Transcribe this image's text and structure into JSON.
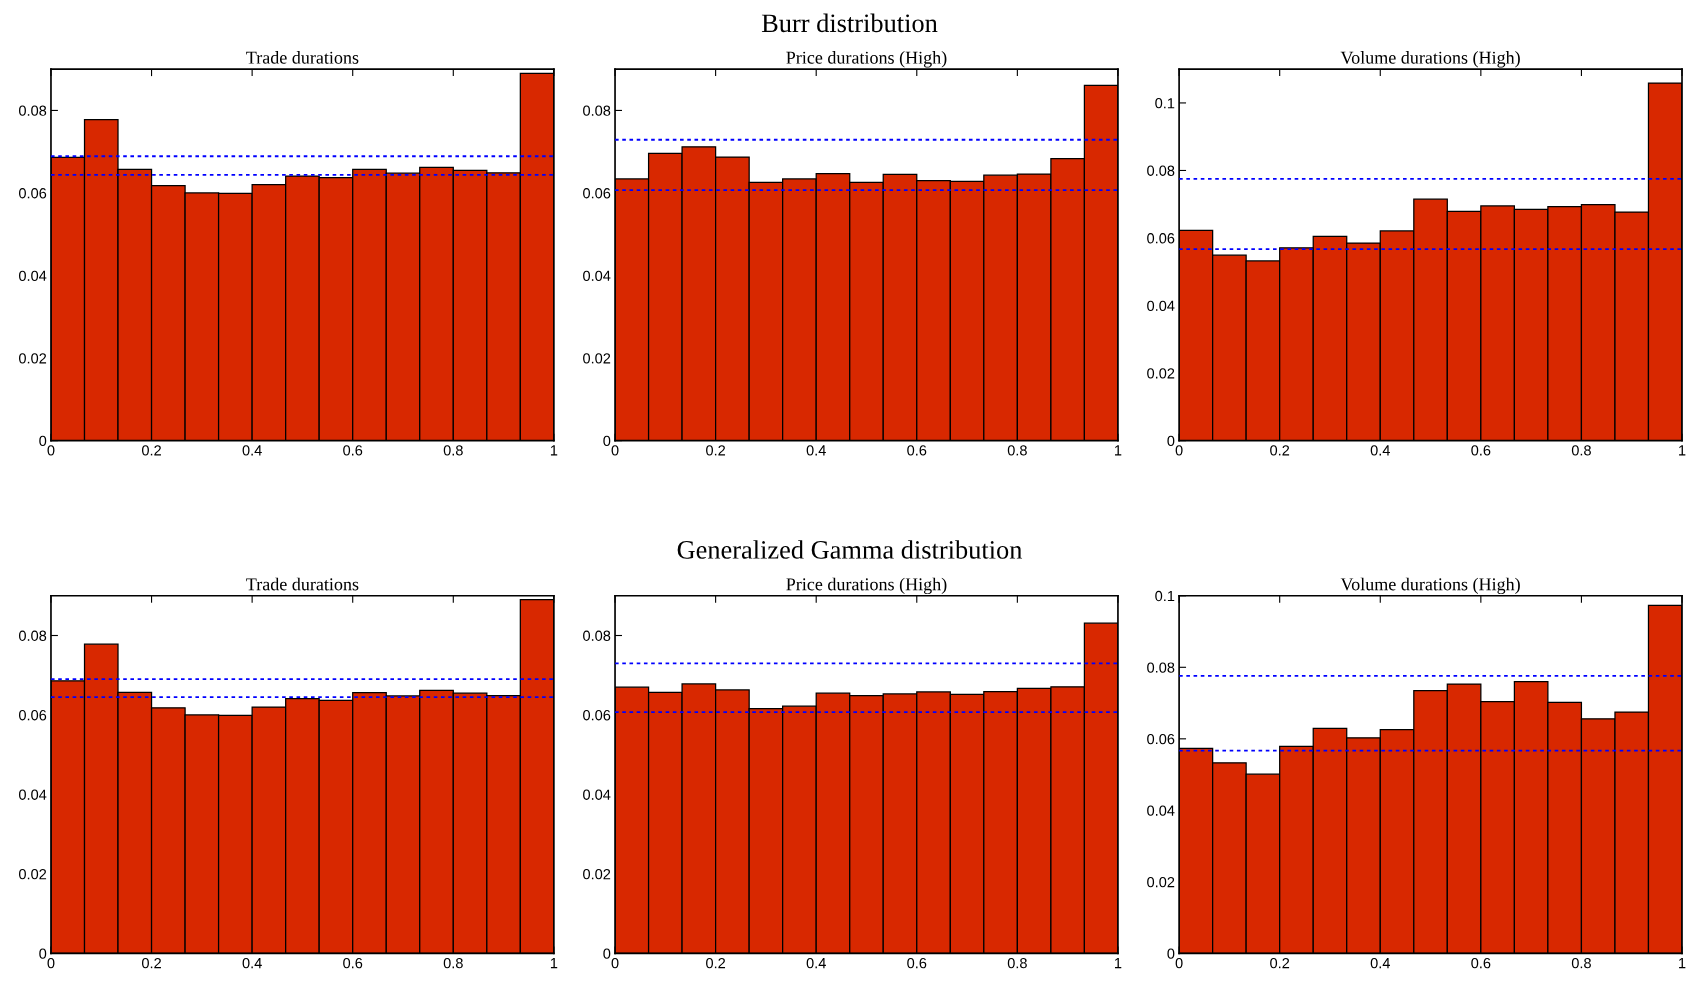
{
  "chart_data": [
    {
      "type": "histogram",
      "title": "Trade durations",
      "annotations": [
        "Burr distribution"
      ],
      "bins": [
        0,
        0.0667,
        0.1333,
        0.2,
        0.2667,
        0.3333,
        0.4,
        0.4667,
        0.5333,
        0.6,
        0.6667,
        0.7333,
        0.8,
        0.8667,
        0.9333,
        1
      ],
      "values": [
        0.0686,
        0.0778,
        0.0657,
        0.0618,
        0.06,
        0.0599,
        0.062,
        0.0641,
        0.0637,
        0.0657,
        0.0648,
        0.0662,
        0.0655,
        0.0649,
        0.089
      ],
      "color": "#d82800",
      "xlim": [
        0,
        1
      ],
      "xticks": [
        0,
        0.2,
        0.4,
        0.6,
        0.8,
        1
      ],
      "ylim": [
        0,
        0.09
      ],
      "yticks": [
        0,
        0.02,
        0.04,
        0.06,
        0.08
      ],
      "grid": false,
      "ref_lines": [
        {
          "axis": "y",
          "value": 0.0689,
          "color": "#0000ff",
          "line_style": "dotted"
        },
        {
          "axis": "y",
          "value": 0.0644,
          "color": "#0000ff",
          "line_style": "dotted"
        }
      ]
    },
    {
      "type": "histogram",
      "title": "Price durations (High)",
      "bins": [
        0,
        0.0667,
        0.1333,
        0.2,
        0.2667,
        0.3333,
        0.4,
        0.4667,
        0.5333,
        0.6,
        0.6667,
        0.7333,
        0.8,
        0.8667,
        0.9333,
        1
      ],
      "values": [
        0.0634,
        0.0696,
        0.0712,
        0.0687,
        0.0626,
        0.0634,
        0.0647,
        0.0626,
        0.0645,
        0.063,
        0.0628,
        0.0643,
        0.0646,
        0.0683,
        0.0861
      ],
      "color": "#d82800",
      "xlim": [
        0,
        1
      ],
      "xticks": [
        0,
        0.2,
        0.4,
        0.6,
        0.8,
        1
      ],
      "ylim": [
        0,
        0.09
      ],
      "yticks": [
        0,
        0.02,
        0.04,
        0.06,
        0.08
      ],
      "grid": false,
      "ref_lines": [
        {
          "axis": "y",
          "value": 0.0729,
          "color": "#0000ff",
          "line_style": "dotted"
        },
        {
          "axis": "y",
          "value": 0.0607,
          "color": "#0000ff",
          "line_style": "dotted"
        }
      ]
    },
    {
      "type": "histogram",
      "title": "Volume durations (High)",
      "bins": [
        0,
        0.0667,
        0.1333,
        0.2,
        0.2667,
        0.3333,
        0.4,
        0.4667,
        0.5333,
        0.6,
        0.6667,
        0.7333,
        0.8,
        0.8667,
        0.9333,
        1
      ],
      "values": [
        0.0623,
        0.0549,
        0.0532,
        0.0571,
        0.0605,
        0.0585,
        0.0621,
        0.0715,
        0.0679,
        0.0695,
        0.0685,
        0.0693,
        0.0699,
        0.0677,
        0.1059
      ],
      "color": "#d82800",
      "xlim": [
        0,
        1
      ],
      "xticks": [
        0,
        0.2,
        0.4,
        0.6,
        0.8,
        1
      ],
      "ylim": [
        0,
        0.11
      ],
      "yticks": [
        0,
        0.02,
        0.04,
        0.06,
        0.08,
        0.1
      ],
      "grid": false,
      "ref_lines": [
        {
          "axis": "y",
          "value": 0.0775,
          "color": "#0000ff",
          "line_style": "dotted"
        },
        {
          "axis": "y",
          "value": 0.0567,
          "color": "#0000ff",
          "line_style": "dotted"
        }
      ]
    },
    {
      "type": "histogram",
      "title": "Trade durations",
      "annotations": [
        "Generalized Gamma distribution"
      ],
      "bins": [
        0,
        0.0667,
        0.1333,
        0.2,
        0.2667,
        0.3333,
        0.4,
        0.4667,
        0.5333,
        0.6,
        0.6667,
        0.7333,
        0.8,
        0.8667,
        0.9333,
        1
      ],
      "values": [
        0.0686,
        0.0778,
        0.0657,
        0.0618,
        0.06,
        0.0599,
        0.062,
        0.0641,
        0.0637,
        0.0656,
        0.0648,
        0.0662,
        0.0655,
        0.0649,
        0.089
      ],
      "color": "#d82800",
      "xlim": [
        0,
        1
      ],
      "xticks": [
        0,
        0.2,
        0.4,
        0.6,
        0.8,
        1
      ],
      "ylim": [
        0,
        0.09
      ],
      "yticks": [
        0,
        0.02,
        0.04,
        0.06,
        0.08
      ],
      "grid": false,
      "ref_lines": [
        {
          "axis": "y",
          "value": 0.069,
          "color": "#0000ff",
          "line_style": "dotted"
        },
        {
          "axis": "y",
          "value": 0.0645,
          "color": "#0000ff",
          "line_style": "dotted"
        }
      ]
    },
    {
      "type": "histogram",
      "title": "Price durations (High)",
      "bins": [
        0,
        0.0667,
        0.1333,
        0.2,
        0.2667,
        0.3333,
        0.4,
        0.4667,
        0.5333,
        0.6,
        0.6667,
        0.7333,
        0.8,
        0.8667,
        0.9333,
        1
      ],
      "values": [
        0.067,
        0.0657,
        0.0678,
        0.0663,
        0.0616,
        0.0622,
        0.0655,
        0.0649,
        0.0653,
        0.0658,
        0.0652,
        0.0659,
        0.0667,
        0.0671,
        0.0831
      ],
      "color": "#d82800",
      "xlim": [
        0,
        1
      ],
      "xticks": [
        0,
        0.2,
        0.4,
        0.6,
        0.8,
        1
      ],
      "ylim": [
        0,
        0.09
      ],
      "yticks": [
        0,
        0.02,
        0.04,
        0.06,
        0.08
      ],
      "grid": false,
      "ref_lines": [
        {
          "axis": "y",
          "value": 0.073,
          "color": "#0000ff",
          "line_style": "dotted"
        },
        {
          "axis": "y",
          "value": 0.0607,
          "color": "#0000ff",
          "line_style": "dotted"
        }
      ]
    },
    {
      "type": "histogram",
      "title": "Volume durations (High)",
      "bins": [
        0,
        0.0667,
        0.1333,
        0.2,
        0.2667,
        0.3333,
        0.4,
        0.4667,
        0.5333,
        0.6,
        0.6667,
        0.7333,
        0.8,
        0.8667,
        0.9333,
        1
      ],
      "values": [
        0.0573,
        0.0533,
        0.0501,
        0.0579,
        0.0629,
        0.0603,
        0.0626,
        0.0735,
        0.0753,
        0.0704,
        0.076,
        0.0702,
        0.0656,
        0.0675,
        0.0973
      ],
      "color": "#d82800",
      "xlim": [
        0,
        1
      ],
      "xticks": [
        0,
        0.2,
        0.4,
        0.6,
        0.8,
        1
      ],
      "ylim": [
        0,
        0.1
      ],
      "yticks": [
        0,
        0.02,
        0.04,
        0.06,
        0.08,
        0.1
      ],
      "grid": false,
      "ref_lines": [
        {
          "axis": "y",
          "value": 0.0776,
          "color": "#0000ff",
          "line_style": "dotted"
        },
        {
          "axis": "y",
          "value": 0.0567,
          "color": "#0000ff",
          "line_style": "dotted"
        }
      ]
    }
  ]
}
